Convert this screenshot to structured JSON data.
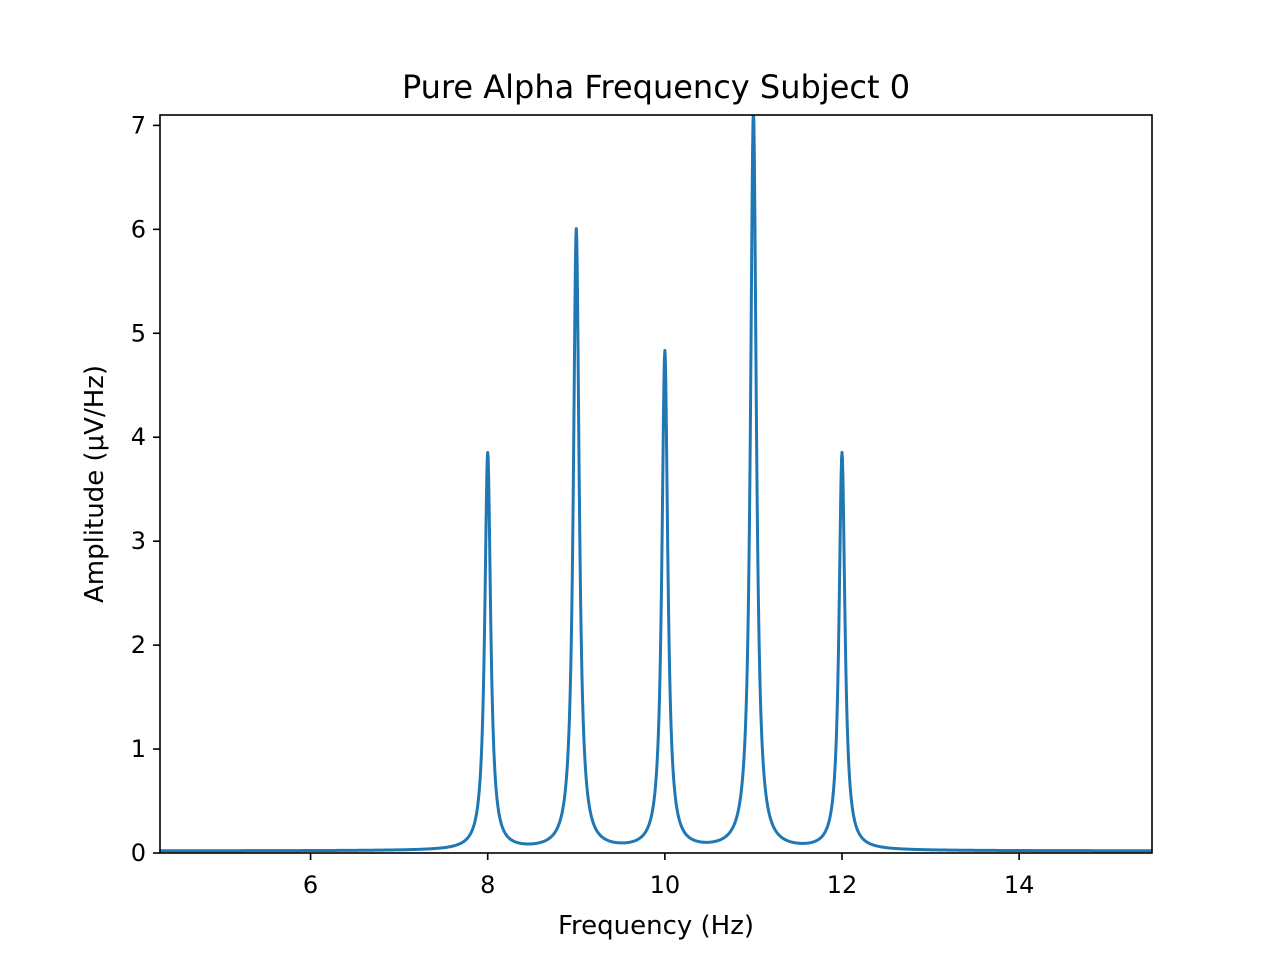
{
  "chart_data": {
    "type": "line",
    "title": "Pure Alpha Frequency Subject 0",
    "xlabel": "Frequency (Hz)",
    "ylabel": "Amplitude (μV/Hz)",
    "xlim": [
      4.3,
      15.5
    ],
    "ylim": [
      0,
      7.1
    ],
    "xticks": [
      6,
      8,
      10,
      12,
      14
    ],
    "xtick_labels": [
      "6",
      "8",
      "10",
      "12",
      "14"
    ],
    "yticks": [
      0,
      1,
      2,
      3,
      4,
      5,
      6,
      7
    ],
    "ytick_labels": [
      "0",
      "1",
      "2",
      "3",
      "4",
      "5",
      "6",
      "7"
    ],
    "grid": false,
    "series": [
      {
        "color": "#1f77b4",
        "peaks": [
          {
            "x": 8,
            "y": 3.82
          },
          {
            "x": 9,
            "y": 5.97
          },
          {
            "x": 10,
            "y": 4.79
          },
          {
            "x": 11,
            "y": 7.1
          },
          {
            "x": 12,
            "y": 3.82
          }
        ],
        "baseline": 0.02
      }
    ]
  }
}
